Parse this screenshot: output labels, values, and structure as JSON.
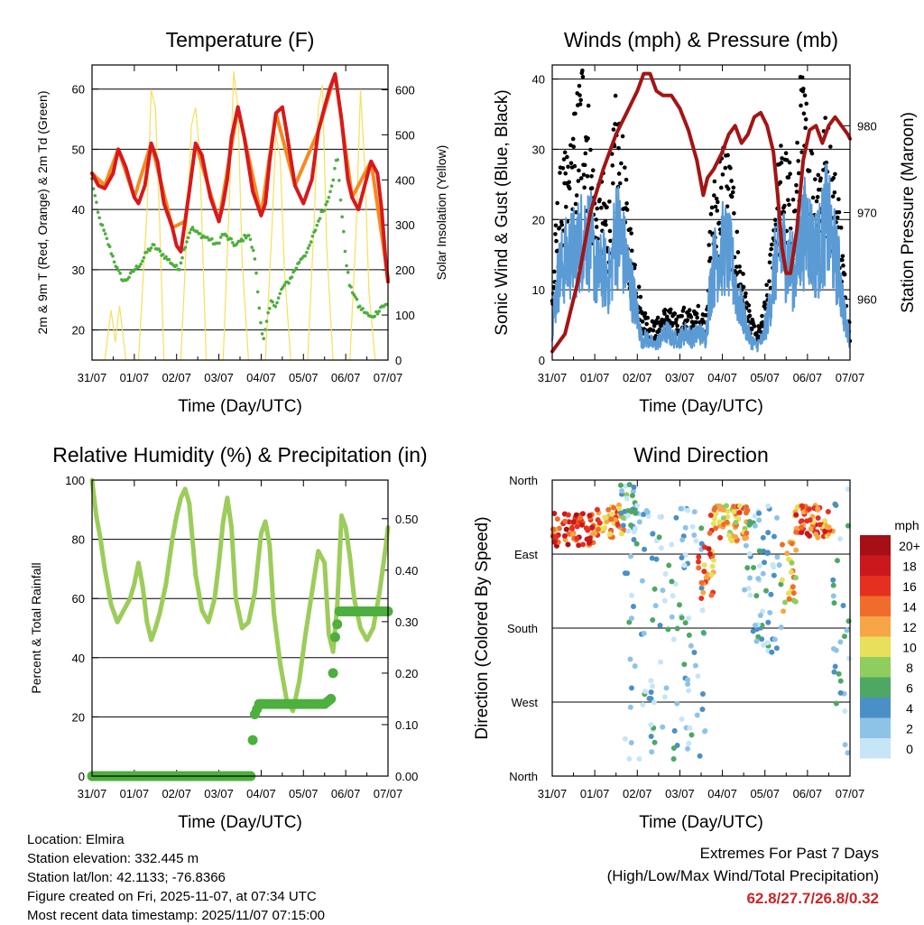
{
  "chart_data": [
    {
      "type": "line",
      "title": "Temperature (F)",
      "xlabel": "Time (Day/UTC)",
      "ylabel": "2m & 9m T (Red, Orange) & 2m Td (Green)",
      "ylabel_right": "Solar Insolation (Yellow)",
      "x_ticks": [
        "31/07",
        "01/07",
        "02/07",
        "03/07",
        "04/07",
        "05/07",
        "06/07",
        "07/07"
      ],
      "ylim": [
        15,
        64
      ],
      "y_ticks": [
        20,
        30,
        40,
        50,
        60
      ],
      "ylim_right": [
        0,
        655
      ],
      "y_ticks_right": [
        0,
        100,
        200,
        300,
        400,
        500,
        600
      ],
      "x_range_days": [
        0,
        7
      ],
      "series": [
        {
          "name": "2m T",
          "color": "#d7191c",
          "x": [
            0,
            0.15,
            0.3,
            0.5,
            0.62,
            0.8,
            1.0,
            1.1,
            1.25,
            1.4,
            1.55,
            1.7,
            1.9,
            2.0,
            2.1,
            2.2,
            2.3,
            2.45,
            2.6,
            2.8,
            3.0,
            3.1,
            3.2,
            3.3,
            3.45,
            3.6,
            3.8,
            4.0,
            4.1,
            4.2,
            4.35,
            4.5,
            4.6,
            4.8,
            5.0,
            5.2,
            5.35,
            5.5,
            5.62,
            5.75,
            5.9,
            6.05,
            6.15,
            6.3,
            6.45,
            6.6,
            6.75,
            6.85,
            6.95,
            7.0
          ],
          "y": [
            46,
            44,
            43.5,
            46,
            50,
            47,
            42,
            41,
            44,
            51,
            48,
            41,
            37,
            34,
            33,
            38,
            43,
            51,
            49,
            42,
            38,
            41,
            45,
            52,
            57,
            52,
            43,
            39,
            41,
            48,
            56,
            57,
            53,
            44,
            41,
            45,
            53,
            57,
            60,
            62.5,
            55,
            45,
            42,
            40,
            44,
            48,
            46,
            40,
            31,
            28
          ]
        },
        {
          "name": "9m T",
          "color": "#f58a1f",
          "x": [
            0,
            0.3,
            0.62,
            1.0,
            1.4,
            1.9,
            2.2,
            2.45,
            3.0,
            3.45,
            4.0,
            4.35,
            4.8,
            5.35,
            5.75,
            6.15,
            6.6,
            6.95,
            7.0
          ],
          "y": [
            46,
            44,
            50,
            42,
            51,
            37,
            38,
            51,
            38,
            57,
            39,
            56,
            44,
            53,
            62.5,
            42,
            48,
            31,
            28.5
          ]
        },
        {
          "name": "2m Td",
          "color": "#4daf3e",
          "x": [
            0,
            0.15,
            0.3,
            0.45,
            0.6,
            0.75,
            0.9,
            1.0,
            1.15,
            1.3,
            1.45,
            1.6,
            1.75,
            1.9,
            2.05,
            2.2,
            2.35,
            2.5,
            2.65,
            2.8,
            2.95,
            3.1,
            3.25,
            3.4,
            3.55,
            3.7,
            3.85,
            3.95,
            4.05,
            4.15,
            4.25,
            4.35,
            4.5,
            4.65,
            4.8,
            4.95,
            5.1,
            5.25,
            5.4,
            5.55,
            5.7,
            5.8,
            5.9,
            6.0,
            6.1,
            6.2,
            6.3,
            6.45,
            6.6,
            6.75,
            6.85,
            6.95,
            7.0
          ],
          "y": [
            45,
            39,
            36,
            33,
            30,
            28,
            29,
            30,
            31,
            33,
            34,
            33,
            32,
            31,
            30,
            34,
            37,
            36,
            35.5,
            35,
            34,
            36,
            35,
            34,
            35,
            36,
            32,
            24,
            18,
            22,
            25,
            24,
            27,
            28,
            30,
            32,
            33,
            36,
            39,
            41,
            45,
            49,
            40,
            32,
            27,
            26,
            24,
            23,
            22,
            23,
            24,
            24,
            24.5
          ]
        },
        {
          "name": "Solar Insolation",
          "color": "#f5e05a",
          "axis": "right",
          "x": [
            0,
            0.3,
            0.45,
            0.55,
            0.65,
            0.8,
            1.1,
            1.3,
            1.4,
            1.5,
            1.6,
            1.7,
            1.9,
            2.1,
            2.25,
            2.35,
            2.45,
            2.55,
            2.7,
            2.9,
            3.1,
            3.25,
            3.35,
            3.45,
            3.55,
            3.7,
            3.9,
            4.1,
            4.25,
            4.35,
            4.45,
            4.55,
            4.7,
            4.9,
            5.1,
            5.25,
            5.35,
            5.45,
            5.55,
            5.7,
            5.9,
            6.1,
            6.25,
            6.35,
            6.45,
            6.55,
            6.7,
            6.9,
            7.0
          ],
          "y": [
            0,
            0,
            110,
            40,
            120,
            0,
            0,
            330,
            600,
            560,
            300,
            0,
            0,
            0,
            300,
            520,
            560,
            450,
            0,
            0,
            0,
            360,
            640,
            560,
            220,
            0,
            0,
            0,
            280,
            500,
            450,
            200,
            0,
            0,
            0,
            300,
            560,
            610,
            250,
            0,
            0,
            0,
            300,
            600,
            430,
            150,
            0,
            0,
            0
          ]
        }
      ]
    },
    {
      "type": "scatter",
      "title": "Winds (mph) & Pressure (mb)",
      "xlabel": "Time (Day/UTC)",
      "ylabel": "Sonic Wind & Gust (Blue, Black)",
      "ylabel_right": "Station Pressure (Maroon)",
      "x_ticks": [
        "31/07",
        "01/07",
        "02/07",
        "03/07",
        "04/07",
        "05/07",
        "06/07",
        "07/07"
      ],
      "ylim": [
        0,
        42
      ],
      "y_ticks": [
        0,
        10,
        20,
        30,
        40
      ],
      "ylim_right": [
        953,
        987
      ],
      "y_ticks_right": [
        960,
        970,
        980
      ],
      "series": [
        {
          "name": "Sonic Wind",
          "color": "#5b9bd5",
          "x": [
            0,
            0.15,
            0.3,
            0.45,
            0.6,
            0.75,
            0.9,
            1.05,
            1.2,
            1.35,
            1.5,
            1.65,
            1.8,
            1.95,
            2.1,
            2.25,
            2.4,
            2.55,
            2.7,
            2.85,
            3.0,
            3.15,
            3.3,
            3.45,
            3.6,
            3.75,
            3.9,
            4.05,
            4.2,
            4.35,
            4.5,
            4.65,
            4.8,
            4.95,
            5.1,
            5.25,
            5.4,
            5.55,
            5.7,
            5.85,
            6.0,
            6.15,
            6.3,
            6.45,
            6.6,
            6.75,
            6.9,
            7.0
          ],
          "y": [
            5,
            12,
            14,
            15,
            16,
            18,
            17,
            12,
            13,
            11,
            19,
            16,
            12,
            8,
            3,
            3,
            2,
            3,
            4,
            3,
            3,
            4,
            3,
            4,
            3,
            12,
            15,
            16,
            14,
            9,
            6,
            3,
            2,
            3,
            7,
            14,
            16,
            14,
            12,
            17,
            19,
            15,
            16,
            20,
            16,
            12,
            5,
            3
          ]
        },
        {
          "name": "Gust",
          "color": "#000000",
          "x": [
            0,
            0.15,
            0.3,
            0.45,
            0.6,
            0.75,
            0.9,
            1.05,
            1.2,
            1.35,
            1.5,
            1.65,
            1.8,
            1.95,
            2.1,
            2.25,
            2.4,
            2.55,
            2.7,
            2.85,
            3.0,
            3.15,
            3.3,
            3.45,
            3.6,
            3.75,
            3.9,
            4.05,
            4.2,
            4.35,
            4.5,
            4.65,
            4.8,
            4.95,
            5.1,
            5.25,
            5.4,
            5.55,
            5.7,
            5.85,
            6.0,
            6.15,
            6.3,
            6.45,
            6.6,
            6.75,
            6.9,
            7.0
          ],
          "y": [
            8,
            20,
            22,
            24,
            30,
            35,
            25,
            18,
            20,
            18,
            29,
            24,
            16,
            12,
            6,
            5,
            4,
            5,
            6,
            5,
            5,
            6,
            5,
            6,
            5,
            18,
            22,
            25,
            21,
            14,
            9,
            5,
            3,
            5,
            10,
            20,
            24,
            22,
            18,
            32,
            28,
            22,
            24,
            27,
            22,
            18,
            8,
            4
          ]
        },
        {
          "name": "Station Pressure",
          "color": "#a31515",
          "axis": "right",
          "x": [
            0,
            0.3,
            0.6,
            0.9,
            1.2,
            1.5,
            1.8,
            2.0,
            2.15,
            2.3,
            2.45,
            2.6,
            2.8,
            3.0,
            3.2,
            3.4,
            3.55,
            3.65,
            3.8,
            4.0,
            4.15,
            4.3,
            4.45,
            4.6,
            4.75,
            4.9,
            5.05,
            5.2,
            5.3,
            5.4,
            5.5,
            5.6,
            5.75,
            5.9,
            6.05,
            6.2,
            6.35,
            6.5,
            6.65,
            6.8,
            6.95,
            7.0
          ],
          "y": [
            954,
            956,
            962,
            970,
            975,
            979,
            982,
            984,
            986,
            986,
            984,
            983.5,
            983.5,
            982,
            979.5,
            976,
            972,
            974,
            975,
            977,
            979,
            980,
            978,
            979,
            981,
            981.5,
            980,
            977,
            972,
            966,
            963,
            963,
            968,
            976,
            979.5,
            980,
            978,
            980,
            981,
            980,
            979,
            978.5
          ]
        }
      ]
    },
    {
      "type": "line",
      "title": "Relative Humidity (%) & Precipitation (in)",
      "xlabel": "Time (Day/UTC)",
      "ylabel": "Percent & Total Rainfall",
      "x_ticks": [
        "31/07",
        "01/07",
        "02/07",
        "03/07",
        "04/07",
        "05/07",
        "06/07",
        "07/07"
      ],
      "ylim": [
        0,
        100
      ],
      "y_ticks": [
        0,
        20,
        40,
        60,
        80,
        100
      ],
      "ylim_right": [
        0,
        0.575
      ],
      "y_ticks_right": [
        "0.00",
        "0.10",
        "0.20",
        "0.30",
        "0.40",
        "0.50"
      ],
      "series": [
        {
          "name": "Relative Humidity",
          "color": "#9ccc5a",
          "x": [
            0,
            0.1,
            0.2,
            0.3,
            0.45,
            0.6,
            0.75,
            0.9,
            1.0,
            1.1,
            1.2,
            1.3,
            1.4,
            1.5,
            1.6,
            1.75,
            1.9,
            2.0,
            2.1,
            2.2,
            2.3,
            2.45,
            2.6,
            2.75,
            2.9,
            3.0,
            3.1,
            3.2,
            3.3,
            3.4,
            3.55,
            3.7,
            3.85,
            4.0,
            4.1,
            4.2,
            4.3,
            4.45,
            4.6,
            4.75,
            4.9,
            5.05,
            5.2,
            5.35,
            5.5,
            5.6,
            5.7,
            5.8,
            5.9,
            6.0,
            6.1,
            6.2,
            6.35,
            6.5,
            6.65,
            6.8,
            6.95,
            7.0
          ],
          "y": [
            100,
            88,
            80,
            70,
            58,
            52,
            56,
            60,
            65,
            72,
            64,
            52,
            46,
            50,
            55,
            65,
            80,
            88,
            94,
            97,
            92,
            68,
            56,
            52,
            60,
            72,
            86,
            94,
            84,
            60,
            50,
            52,
            62,
            82,
            86,
            78,
            55,
            38,
            26,
            22,
            32,
            48,
            62,
            76,
            72,
            48,
            42,
            58,
            88,
            84,
            74,
            60,
            50,
            46,
            50,
            62,
            78,
            84
          ]
        },
        {
          "name": "Total Precipitation",
          "color": "#4daf3e",
          "axis": "right",
          "x": [
            0,
            3.75,
            3.78,
            3.85,
            3.95,
            4.5,
            5.0,
            5.5,
            5.65,
            5.7,
            5.75,
            5.85,
            6.0,
            6.5,
            7.0
          ],
          "y": [
            0,
            0,
            0.05,
            0.12,
            0.14,
            0.14,
            0.14,
            0.14,
            0.15,
            0.2,
            0.27,
            0.32,
            0.32,
            0.32,
            0.32
          ]
        }
      ]
    },
    {
      "type": "scatter",
      "title": "Wind Direction",
      "xlabel": "Time (Day/UTC)",
      "ylabel": "Direction (Colored By Speed)",
      "x_ticks": [
        "31/07",
        "01/07",
        "02/07",
        "03/07",
        "04/07",
        "05/07",
        "06/07",
        "07/07"
      ],
      "y_ticks": [
        "North",
        "West",
        "South",
        "East",
        "North"
      ],
      "ylim": [
        0,
        360
      ],
      "colorbar": {
        "title": "mph",
        "labels": [
          "20+",
          "18",
          "16",
          "14",
          "12",
          "10",
          "8",
          "6",
          "4",
          "2",
          "0"
        ],
        "colors": [
          "#a50f15",
          "#cb181d",
          "#e6301f",
          "#f06c2c",
          "#f6a547",
          "#e8e05a",
          "#8fcd5e",
          "#4da864",
          "#4b8fc7",
          "#8ec3e8",
          "#c6e5f7"
        ]
      },
      "clusters": [
        {
          "x_range": [
            0.0,
            1.0
          ],
          "dir_range": [
            280,
            320
          ],
          "speed": 16
        },
        {
          "x_range": [
            1.0,
            1.7
          ],
          "dir_range": [
            290,
            330
          ],
          "speed": 13
        },
        {
          "x_range": [
            1.6,
            2.0
          ],
          "dir_range": [
            300,
            355
          ],
          "speed": 4
        },
        {
          "x_range": [
            1.7,
            3.6
          ],
          "dir_range": [
            20,
            330
          ],
          "speed": 2
        },
        {
          "x_range": [
            3.4,
            3.8
          ],
          "dir_range": [
            210,
            280
          ],
          "speed": 14
        },
        {
          "x_range": [
            3.7,
            4.6
          ],
          "dir_range": [
            285,
            330
          ],
          "speed": 12
        },
        {
          "x_range": [
            4.5,
            5.4
          ],
          "dir_range": [
            150,
            330
          ],
          "speed": 3
        },
        {
          "x_range": [
            5.4,
            5.75
          ],
          "dir_range": [
            190,
            290
          ],
          "speed": 11
        },
        {
          "x_range": [
            5.7,
            6.6
          ],
          "dir_range": [
            290,
            330
          ],
          "speed": 14
        },
        {
          "x_range": [
            6.6,
            7.0
          ],
          "dir_range": [
            10,
            350
          ],
          "speed": 3
        }
      ]
    }
  ],
  "footer": {
    "location": "Location: Elmira",
    "elevation": "Station elevation: 332.445 m",
    "latlon": "Station lat/lon: 42.1133; -76.8366",
    "created": "Figure created on Fri, 2025-11-07, at 07:34 UTC",
    "recent": "Most recent data timestamp: 2025/11/07 07:15:00",
    "extremes_title": "Extremes For Past 7 Days",
    "extremes_sub": "(High/Low/Max Wind/Total Precipitation)",
    "extremes_values": "62.8/27.7/26.8/0.32"
  }
}
